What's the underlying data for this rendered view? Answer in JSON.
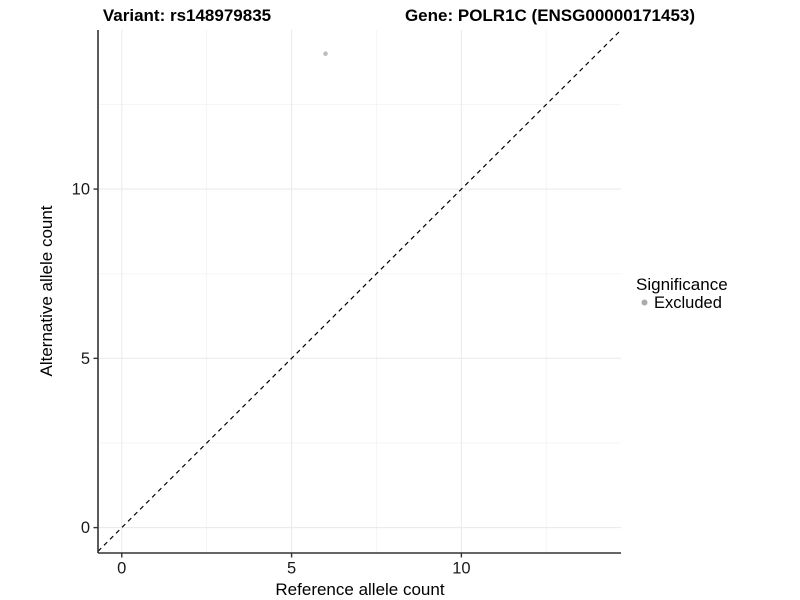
{
  "chart_data": {
    "type": "scatter",
    "title_left": "Variant: rs148979835",
    "title_right": "Gene: POLR1C (ENSG00000171453)",
    "xlabel": "Reference allele count",
    "ylabel": "Alternative allele count",
    "xlim": [
      -0.7,
      14.7
    ],
    "ylim": [
      -0.75,
      14.7
    ],
    "x_ticks": [
      0,
      5,
      10
    ],
    "y_ticks": [
      0,
      5,
      10
    ],
    "x_minor_gridlines": [
      2.5,
      7.5,
      12.5
    ],
    "y_minor_gridlines": [
      2.5,
      7.5,
      12.5
    ],
    "grid": true,
    "series": [
      {
        "name": "Excluded",
        "points": [
          {
            "x": 6,
            "y": 14
          }
        ]
      }
    ],
    "reference_line": {
      "type": "identity",
      "slope": 1,
      "intercept": 0,
      "style": "dashed"
    },
    "legend": {
      "title": "Significance",
      "position": "right",
      "items": [
        {
          "label": "Excluded",
          "color": "#ababab"
        }
      ]
    },
    "colors": {
      "point": "#bdbdbd",
      "legend_dot": "#ababab",
      "grid_major": "#ebebeb",
      "grid_minor": "#f5f5f5",
      "axis_line": "#333333",
      "tick_mark": "#333333",
      "dashed_line": "#000000",
      "background": "#ffffff"
    }
  }
}
